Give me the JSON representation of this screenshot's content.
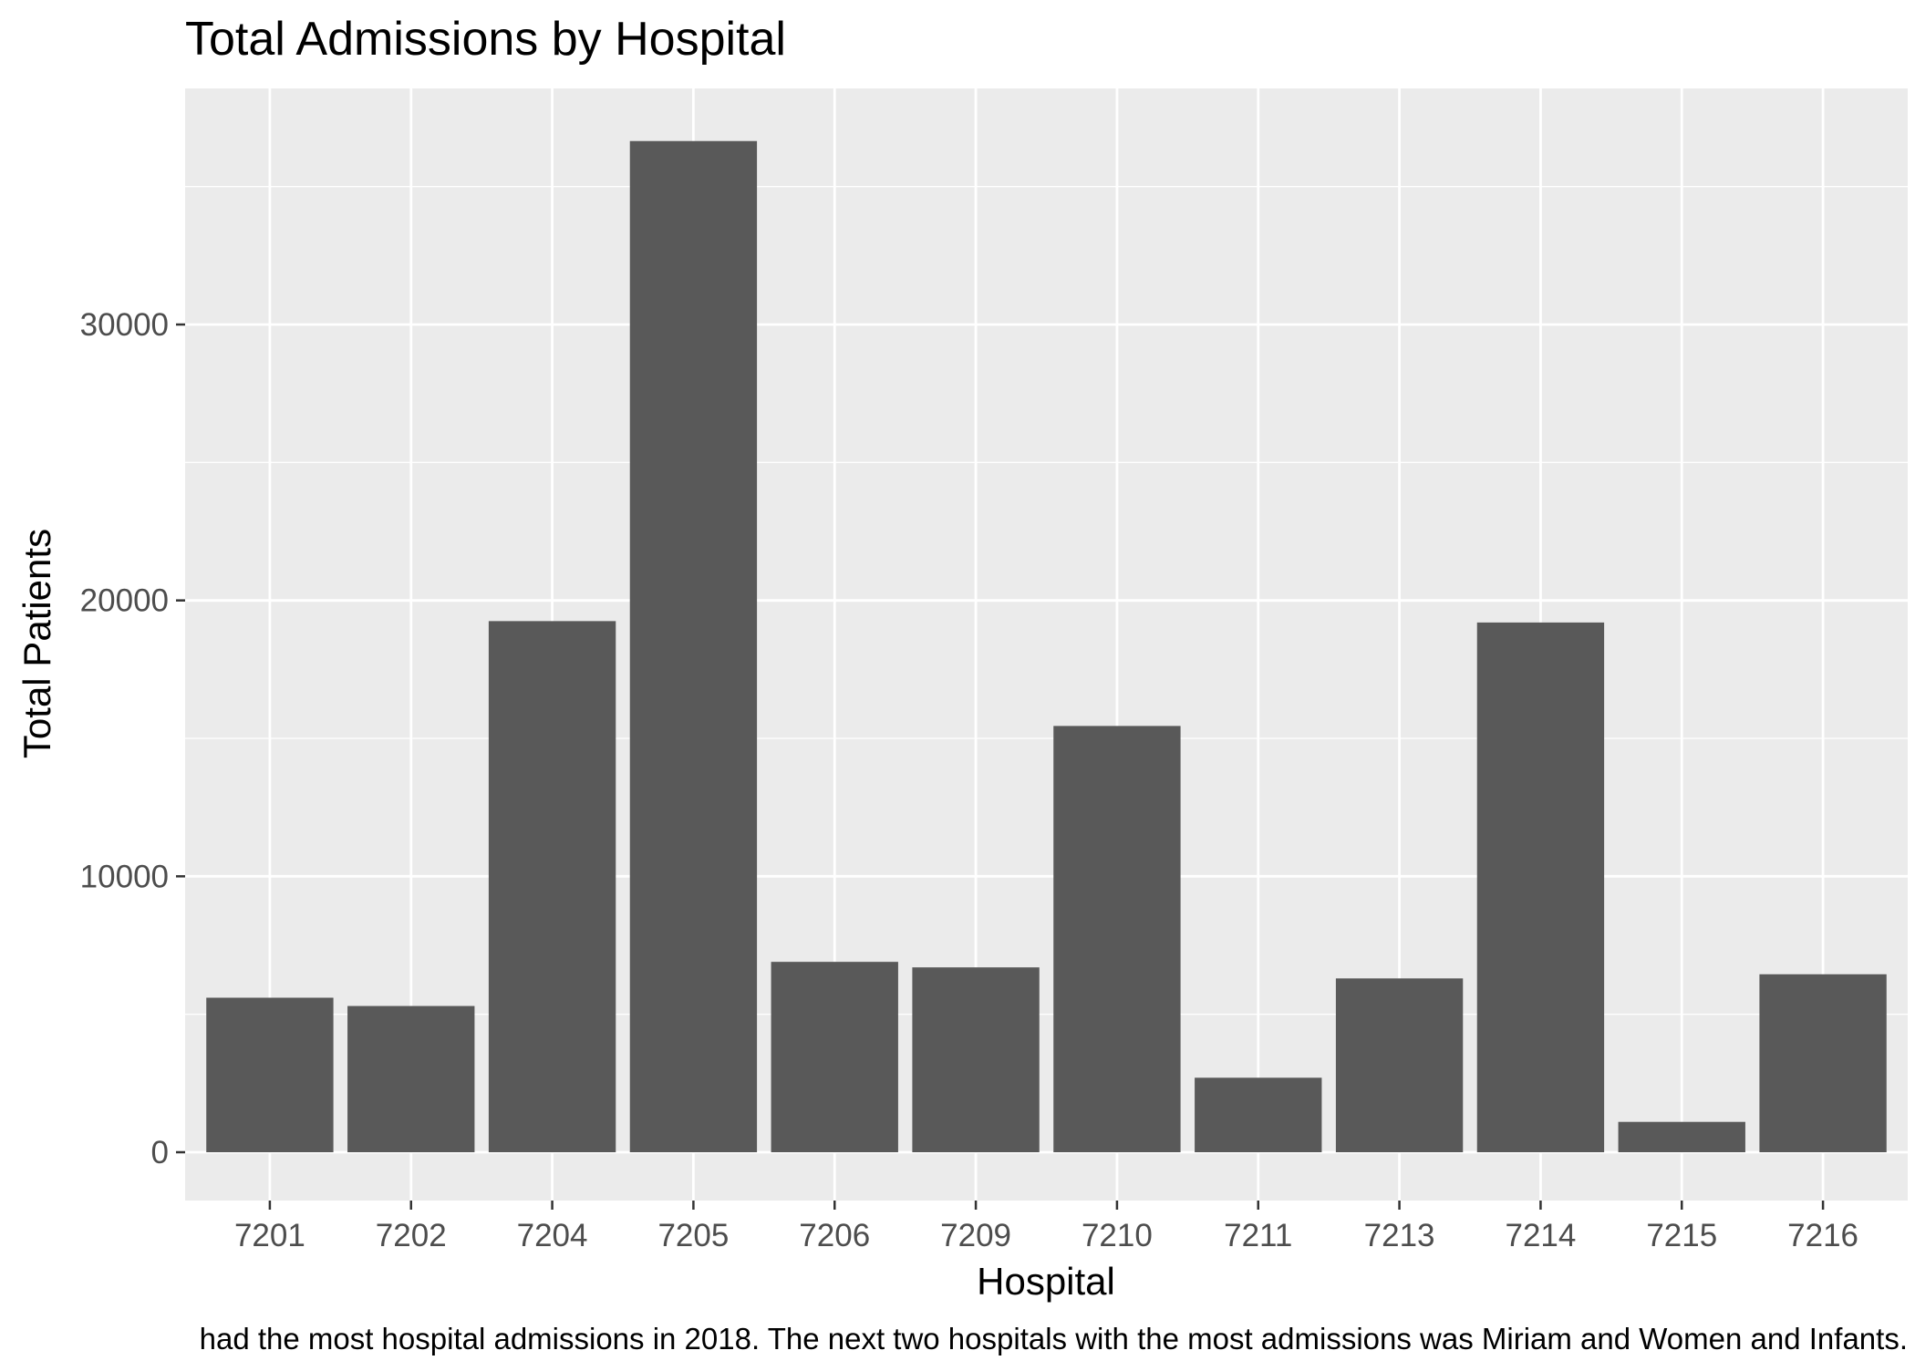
{
  "chart_data": {
    "type": "bar",
    "title": "Total Admissions by Hospital",
    "xlabel": "Hospital",
    "ylabel": "Total Patients",
    "caption": "had the most hospital admissions in 2018. The next two hospitals with the most admissions was Miriam and Women and Infants.",
    "categories": [
      "7201",
      "7202",
      "7204",
      "7205",
      "7206",
      "7209",
      "7210",
      "7211",
      "7213",
      "7214",
      "7215",
      "7216"
    ],
    "values": [
      5600,
      5300,
      19250,
      36650,
      6900,
      6700,
      15450,
      2700,
      6300,
      19200,
      1100,
      6450
    ],
    "ylim": [
      -1850,
      38500
    ],
    "yticks": [
      0,
      10000,
      20000,
      30000
    ],
    "ytick_labels": [
      "0",
      "10000",
      "20000",
      "30000"
    ],
    "grid": true,
    "colors": {
      "panel_background": "#EBEBEB",
      "grid_major": "#FFFFFF",
      "bar_fill": "#595959",
      "axis_text": "#4D4D4D",
      "title_text": "#000000"
    }
  }
}
